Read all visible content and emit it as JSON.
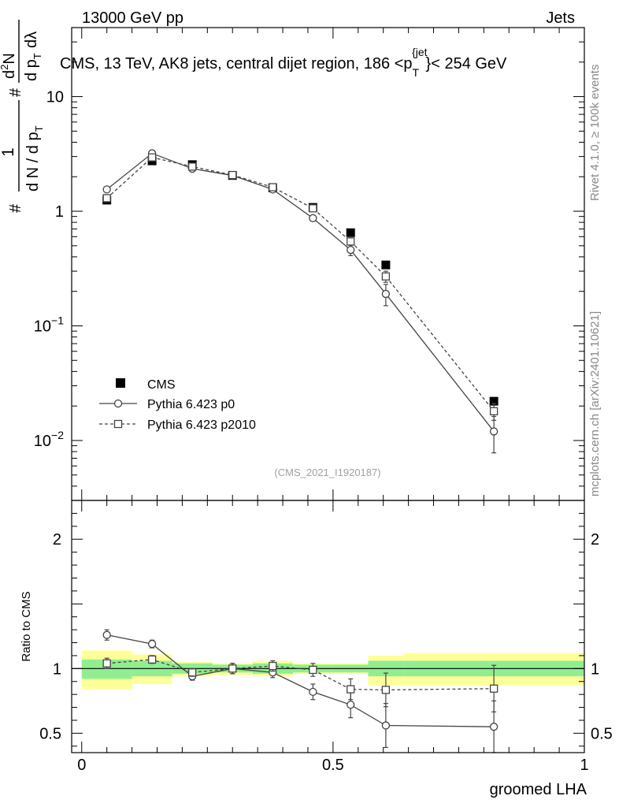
{
  "header": {
    "left": "13000 GeV pp",
    "right": "Jets"
  },
  "side_text": {
    "rivet": "Rivet 4.1.0, ≥ 100k events",
    "mcplots": "mcplots.cern.ch [arXiv:2401.10621]"
  },
  "chart_data": [
    {
      "panel": "main",
      "type": "line",
      "title": "CMS, 13 TeV, AK8 jets, central dijet region, 186 <p",
      "title_sub": "T",
      "title_sup": "{jet",
      "title_tail": "}< 254 GeV",
      "ylabel": {
        "lead": "#",
        "numerator": "1",
        "denominator": "d N / d p",
        "denominator_sub": "T",
        "mid": "#",
        "d2n": "d",
        "d2n_sup": "2",
        "d2n_tail": "N",
        "dpt": "d p",
        "dpt_sub": "T",
        "dlambda": "dλ"
      },
      "yscale": "log",
      "ylim": [
        0.003,
        40
      ],
      "xlim": [
        -0.02,
        1.0
      ],
      "ytick_labels": [
        {
          "value": 0.01,
          "base": "10",
          "exp": "−2"
        },
        {
          "value": 0.1,
          "base": "10",
          "exp": "−1"
        },
        {
          "value": 1,
          "base": "1",
          "exp": ""
        },
        {
          "value": 10,
          "base": "10",
          "exp": ""
        }
      ],
      "watermark": "(CMS_2021_I1920187)",
      "bins": [
        [
          0,
          0.1
        ],
        [
          0.1,
          0.18
        ],
        [
          0.18,
          0.26
        ],
        [
          0.26,
          0.34
        ],
        [
          0.34,
          0.42
        ],
        [
          0.42,
          0.5
        ],
        [
          0.5,
          0.57
        ],
        [
          0.57,
          0.64
        ],
        [
          0.64,
          1.0
        ]
      ],
      "series": [
        {
          "name": "CMS",
          "style": "data",
          "color": "#000000",
          "x": [
            0.05,
            0.14,
            0.22,
            0.3,
            0.38,
            0.46,
            0.535,
            0.605,
            0.82
          ],
          "values": [
            1.25,
            2.75,
            2.55,
            2.05,
            1.6,
            1.08,
            0.65,
            0.34,
            0.022
          ]
        },
        {
          "name": "Pythia 6.423 p0",
          "style": "solid-circle",
          "color": "#444444",
          "x": [
            0.05,
            0.14,
            0.22,
            0.3,
            0.38,
            0.46,
            0.535,
            0.605,
            0.82
          ],
          "values": [
            1.55,
            3.2,
            2.35,
            2.05,
            1.55,
            0.87,
            0.46,
            0.19,
            0.012
          ],
          "err_low": [
            0.06,
            0.1,
            0.06,
            0.05,
            0.04,
            0.04,
            0.05,
            0.04,
            0.0042
          ],
          "err_high": [
            0.06,
            0.1,
            0.06,
            0.05,
            0.04,
            0.04,
            0.05,
            0.04,
            0.0042
          ]
        },
        {
          "name": "Pythia 6.423 p2010",
          "style": "dashed-square",
          "color": "#444444",
          "x": [
            0.05,
            0.14,
            0.22,
            0.3,
            0.38,
            0.46,
            0.535,
            0.605,
            0.82
          ],
          "values": [
            1.3,
            2.95,
            2.45,
            2.07,
            1.62,
            1.06,
            0.545,
            0.27,
            0.018
          ],
          "err_low": [
            0.05,
            0.08,
            0.05,
            0.05,
            0.04,
            0.04,
            0.04,
            0.03,
            0.003
          ],
          "err_high": [
            0.05,
            0.08,
            0.05,
            0.05,
            0.04,
            0.04,
            0.04,
            0.03,
            0.003
          ]
        }
      ]
    },
    {
      "panel": "ratio",
      "type": "line",
      "ylabel": "Ratio to CMS",
      "xlabel": "groomed LHA",
      "ylim": [
        0.35,
        2.3
      ],
      "xlim": [
        -0.02,
        1.0
      ],
      "xticks": [
        0,
        0.5,
        1
      ],
      "xtick_labels": [
        "0",
        "0.5",
        "1"
      ],
      "ytick_labels": [
        {
          "value": 0.5,
          "label": "0.5"
        },
        {
          "value": 1,
          "label": "1"
        },
        {
          "value": 2,
          "label": "2"
        }
      ],
      "bands": {
        "bins": [
          [
            0,
            0.1
          ],
          [
            0.1,
            0.18
          ],
          [
            0.18,
            0.26
          ],
          [
            0.26,
            0.34
          ],
          [
            0.34,
            0.42
          ],
          [
            0.42,
            0.5
          ],
          [
            0.5,
            0.57
          ],
          [
            0.57,
            0.64
          ],
          [
            0.64,
            1.0
          ]
        ],
        "inner_low": [
          0.92,
          0.94,
          0.96,
          0.97,
          0.96,
          0.97,
          0.97,
          0.94,
          0.94
        ],
        "inner_high": [
          1.07,
          1.06,
          1.04,
          1.03,
          1.04,
          1.03,
          1.03,
          1.06,
          1.06
        ],
        "outer_low": [
          0.84,
          0.88,
          0.94,
          0.95,
          0.94,
          0.96,
          0.96,
          0.87,
          0.87
        ],
        "outer_high": [
          1.14,
          1.11,
          1.05,
          1.04,
          1.06,
          1.04,
          1.04,
          1.1,
          1.12
        ],
        "inner_color": "#90ee90",
        "outer_color": "#ffff99"
      },
      "series": [
        {
          "name": "Pythia 6.423 p0",
          "style": "solid-circle",
          "color": "#444444",
          "x": [
            0.05,
            0.14,
            0.22,
            0.3,
            0.38,
            0.46,
            0.535,
            0.605,
            0.82
          ],
          "values": [
            1.26,
            1.19,
            0.94,
            1.0,
            0.97,
            0.82,
            0.72,
            0.56,
            0.55
          ],
          "err_low": [
            0.04,
            0.03,
            0.03,
            0.04,
            0.04,
            0.06,
            0.1,
            0.17,
            0.2
          ],
          "err_high": [
            0.04,
            0.03,
            0.03,
            0.04,
            0.04,
            0.06,
            0.1,
            0.17,
            0.2
          ]
        },
        {
          "name": "Pythia 6.423 p2010",
          "style": "dashed-square",
          "color": "#444444",
          "x": [
            0.05,
            0.14,
            0.22,
            0.3,
            0.38,
            0.46,
            0.535,
            0.605,
            0.82
          ],
          "values": [
            1.04,
            1.07,
            0.97,
            1.0,
            1.02,
            0.99,
            0.84,
            0.835,
            0.845
          ],
          "err_low": [
            0.04,
            0.03,
            0.03,
            0.04,
            0.04,
            0.05,
            0.08,
            0.13,
            0.18
          ],
          "err_high": [
            0.04,
            0.03,
            0.03,
            0.04,
            0.04,
            0.05,
            0.08,
            0.13,
            0.18
          ]
        }
      ]
    }
  ]
}
